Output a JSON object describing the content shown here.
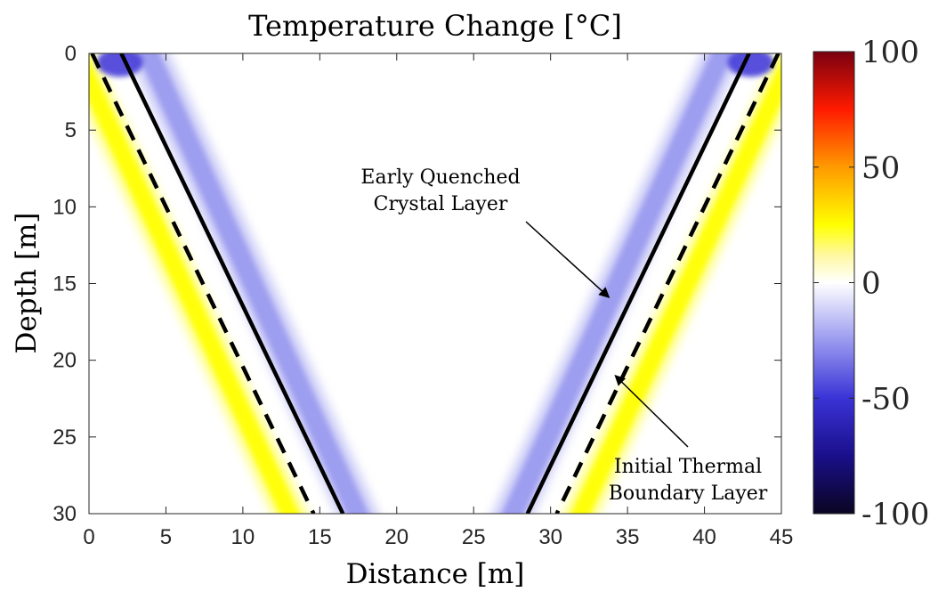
{
  "chart_data": {
    "type": "heatmap",
    "title": "Temperature Change [°C]",
    "xlabel": "Distance [m]",
    "ylabel": "Depth [m]",
    "xlim": [
      0,
      45
    ],
    "ylim": [
      0,
      30
    ],
    "y_reversed": true,
    "xticks": [
      0,
      5,
      10,
      15,
      20,
      25,
      30,
      35,
      40,
      45
    ],
    "yticks": [
      0,
      5,
      10,
      15,
      20,
      25,
      30
    ],
    "colorbar": {
      "range": [
        -100,
        100
      ],
      "ticks": [
        "100",
        "50",
        "0",
        "-50",
        "-100"
      ],
      "tick_values": [
        100,
        50,
        0,
        -50,
        -100
      ],
      "colors": {
        "-100": "#0a0522",
        "-75": "#1a0f8a",
        "-50": "#3a33d6",
        "-25": "#9a9af0",
        "0": "#ffffff",
        "12": "#fff8a0",
        "25": "#ffff00",
        "50": "#ff9a00",
        "75": "#ff1a00",
        "100": "#7a0010"
      }
    },
    "lines": [
      {
        "style": "solid",
        "color": "#000000",
        "points": [
          [
            2.1,
            0
          ],
          [
            16.5,
            30
          ]
        ]
      },
      {
        "style": "dashed",
        "color": "#000000",
        "points": [
          [
            0.2,
            0
          ],
          [
            14.6,
            30
          ]
        ]
      },
      {
        "style": "solid",
        "color": "#000000",
        "points": [
          [
            42.9,
            0
          ],
          [
            28.5,
            30
          ]
        ]
      },
      {
        "style": "dashed",
        "color": "#000000",
        "points": [
          [
            44.8,
            0
          ],
          [
            30.4,
            30
          ]
        ]
      }
    ],
    "bands": [
      {
        "name": "left-quenched",
        "x_top": 3.4,
        "x_bottom": 17.9,
        "half_width": 1.3,
        "value": -18
      },
      {
        "name": "left-thermal",
        "x_top": -1.3,
        "x_bottom": 13.5,
        "half_width": 1.1,
        "value": 22
      },
      {
        "name": "right-quenched",
        "x_top": 41.6,
        "x_bottom": 27.1,
        "half_width": 1.3,
        "value": -18
      },
      {
        "name": "right-thermal",
        "x_top": 46.3,
        "x_bottom": 31.5,
        "half_width": 1.1,
        "value": 22
      }
    ],
    "annotations": [
      {
        "text": "Early Quenched\nCrystal Layer",
        "target": [
          33.8,
          15.9
        ]
      },
      {
        "text": "Initial Thermal\nBoundary Layer",
        "target": [
          34.2,
          21.0
        ]
      }
    ]
  }
}
